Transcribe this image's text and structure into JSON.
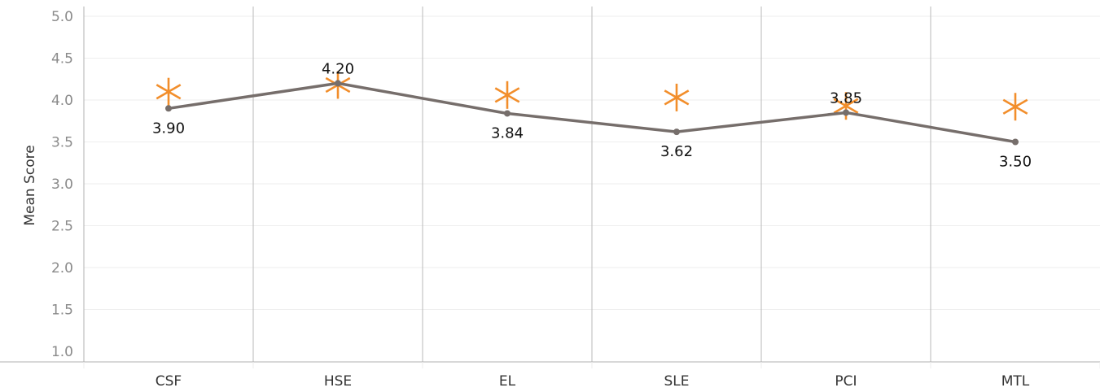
{
  "chart_data": {
    "type": "line",
    "categories": [
      "CSF",
      "HSE",
      "EL",
      "SLE",
      "PCI",
      "MTL"
    ],
    "series": [
      {
        "values": [
          3.9,
          4.2,
          3.84,
          3.62,
          3.85,
          3.5
        ],
        "labels": [
          "3.90",
          "4.20",
          "3.84",
          "3.62",
          "3.85",
          "3.50"
        ],
        "color": "#766e6b",
        "marker": "dot"
      },
      {
        "values": [
          4.1,
          4.18,
          4.06,
          4.03,
          3.93,
          3.92
        ],
        "color": "#f28e2b",
        "marker": "asterisk"
      }
    ],
    "ylabel": "Mean Score",
    "xlabel": "",
    "ylim": [
      1.0,
      5.0
    ],
    "yticks": [
      "1.0",
      "1.5",
      "2.0",
      "2.5",
      "3.0",
      "3.5",
      "4.0",
      "4.5",
      "5.0"
    ],
    "grid": true,
    "colors": {
      "gridline": "#eeeeee",
      "divider": "#c4c4c4",
      "axis": "#b0b0b0"
    }
  }
}
